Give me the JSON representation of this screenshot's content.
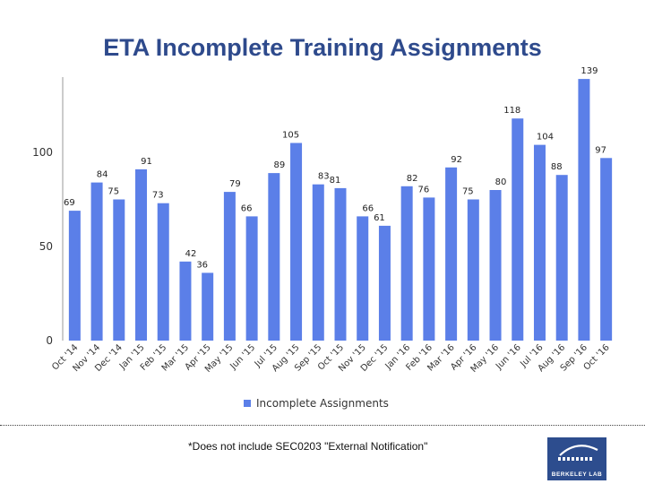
{
  "chart_data": {
    "type": "bar",
    "title": "ETA Incomplete Training Assignments",
    "categories": [
      "Oct '14",
      "Nov '14",
      "Dec '14",
      "Jan '15",
      "Feb '15",
      "Mar '15",
      "Apr '15",
      "May '15",
      "Jun '15",
      "Jul '15",
      "Aug '15",
      "Sep '15",
      "Oct '15",
      "Nov '15",
      "Dec '15",
      "Jan '16",
      "Feb '16",
      "Mar '16",
      "Apr '16",
      "May '16",
      "Jun '16",
      "Jul '16",
      "Aug '16",
      "Sep '16",
      "Oct '16"
    ],
    "series": [
      {
        "name": "Incomplete Assignments",
        "values": [
          69,
          84,
          75,
          91,
          73,
          42,
          36,
          79,
          66,
          89,
          105,
          83,
          81,
          66,
          61,
          82,
          76,
          92,
          75,
          80,
          118,
          104,
          88,
          139,
          97
        ]
      }
    ],
    "xlabel": "",
    "ylabel": "",
    "ylim": [
      0,
      140
    ],
    "yticks": [
      "0",
      "50",
      "100"
    ],
    "legend_position": "bottom",
    "bar_color": "#5b7fe8"
  },
  "footnote": "*Does not include SEC0203 \"External Notification\"",
  "logo_text": "BERKELEY LAB"
}
